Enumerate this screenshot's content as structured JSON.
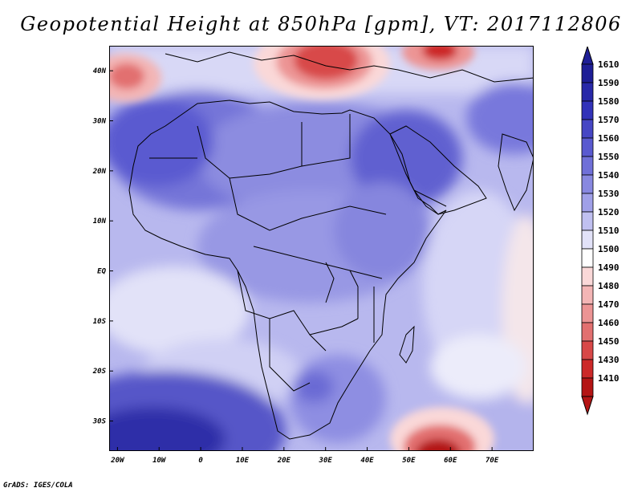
{
  "title": "Geopotential Height at 850hPa [gpm], VT: 2017112806",
  "footer": "GrADS: IGES/COLA",
  "map": {
    "lat_range": [
      -36,
      45
    ],
    "lon_range": [
      -22,
      80
    ],
    "lat_labels": [
      {
        "lat": 40,
        "text": "40N"
      },
      {
        "lat": 30,
        "text": "30N"
      },
      {
        "lat": 20,
        "text": "20N"
      },
      {
        "lat": 10,
        "text": "10N"
      },
      {
        "lat": 0,
        "text": "EQ"
      },
      {
        "lat": -10,
        "text": "10S"
      },
      {
        "lat": -20,
        "text": "20S"
      },
      {
        "lat": -30,
        "text": "30S"
      }
    ],
    "lon_labels": [
      {
        "lon": -20,
        "text": "20W"
      },
      {
        "lon": -10,
        "text": "10W"
      },
      {
        "lon": 0,
        "text": "0"
      },
      {
        "lon": 10,
        "text": "10E"
      },
      {
        "lon": 20,
        "text": "20E"
      },
      {
        "lon": 30,
        "text": "30E"
      },
      {
        "lon": 40,
        "text": "40E"
      },
      {
        "lon": 50,
        "text": "50E"
      },
      {
        "lon": 60,
        "text": "60E"
      },
      {
        "lon": 70,
        "text": "70E"
      }
    ]
  },
  "colorbar": {
    "levels": [
      "1610",
      "1590",
      "1580",
      "1570",
      "1560",
      "1550",
      "1540",
      "1530",
      "1520",
      "1510",
      "1500",
      "1490",
      "1480",
      "1470",
      "1460",
      "1450",
      "1430",
      "1410"
    ],
    "colors": [
      "#1e1e96",
      "#2828a8",
      "#3232b9",
      "#4646c4",
      "#5a5ad0",
      "#7070d8",
      "#8888e0",
      "#a0a0e8",
      "#c0c0f0",
      "#e2e2f8",
      "#ffffff",
      "#fad8d8",
      "#f3b5b5",
      "#ec9494",
      "#e27070",
      "#d84848",
      "#cc2828",
      "#b41414"
    ]
  }
}
